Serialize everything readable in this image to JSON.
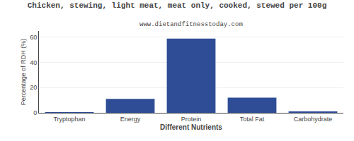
{
  "chart_data": {
    "type": "bar",
    "title": "Chicken, stewing, light meat, meat only, cooked, stewed per 100g",
    "subtitle": "www.dietandfitnesstoday.com",
    "xlabel": "Different Nutrients",
    "ylabel": "Percentage of RDH (%)",
    "categories": [
      "Tryptophan",
      "Energy",
      "Protein",
      "Total Fat",
      "Carbohydrate"
    ],
    "values": [
      0.4,
      11,
      59,
      12,
      1
    ],
    "color": "#2e4d96",
    "ylim": [
      0,
      65
    ],
    "yticks": [
      0,
      20,
      40,
      60
    ],
    "grid": true
  }
}
